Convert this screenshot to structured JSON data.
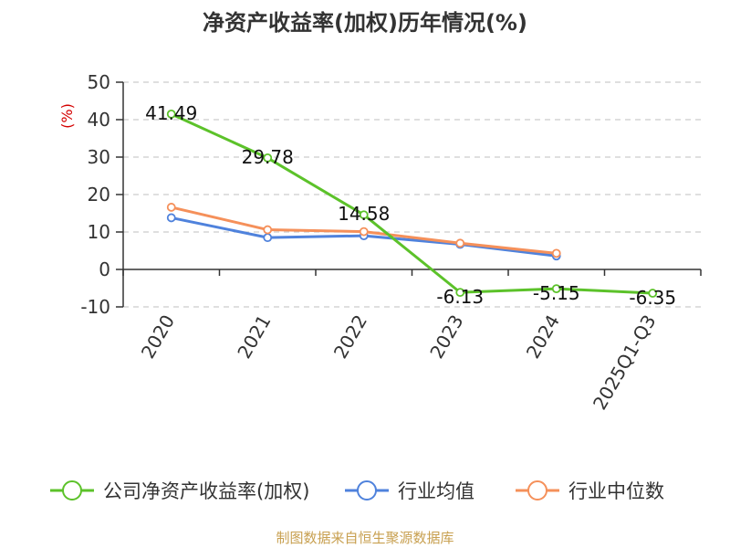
{
  "colors": {
    "company": "#5cc22a",
    "industry_avg": "#4f82dc",
    "industry_median": "#f5905a",
    "grid": "#cccccc",
    "axis": "#333333",
    "source": "#c8a050",
    "unit": "#d40000"
  },
  "source_text": "制图数据来自恒生聚源数据库",
  "chart_data": {
    "type": "line",
    "title": "净资产收益率(加权)历年情况(%)",
    "ylabel": "(%)",
    "categories": [
      "2020",
      "2021",
      "2022",
      "2023",
      "2024",
      "2025Q1-Q3"
    ],
    "ylim": [
      -10,
      50
    ],
    "yticks": [
      50,
      40,
      30,
      20,
      10,
      0,
      -10
    ],
    "grid": true,
    "legend_position": "bottom",
    "series": [
      {
        "name": "公司净资产收益率(加权)",
        "color_key": "company",
        "values": [
          41.49,
          29.78,
          14.58,
          -6.13,
          -5.15,
          -6.35
        ],
        "labels": [
          "41.49",
          "29.78",
          "14.58",
          "-6.13",
          "-5.15",
          "-6.35"
        ]
      },
      {
        "name": "行业均值",
        "color_key": "industry_avg",
        "values": [
          13.8,
          8.5,
          9.0,
          6.7,
          3.6,
          null
        ]
      },
      {
        "name": "行业中位数",
        "color_key": "industry_median",
        "values": [
          16.6,
          10.6,
          10.1,
          7.0,
          4.3,
          null
        ]
      }
    ]
  }
}
